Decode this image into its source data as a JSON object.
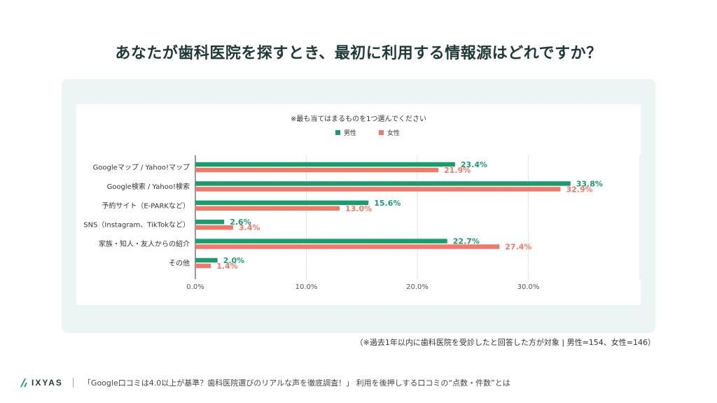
{
  "title": "あなたが歯科医院を探すとき、最初に利用する情報源はどれですか？",
  "note": "（※過去1年以内に歯科医院を受診したと回答した方が対象 | 男性=154、女性=146）",
  "footer": {
    "logo_text": "IXYAS",
    "text": "「Google口コミは4.0以上が基準？歯科医院選びのリアルな声を徹底調査！」 利用を後押しする口コミの“点数・件数”とは"
  },
  "colors": {
    "male": "#1a9d6c",
    "female": "#f07a6a",
    "title": "#1f3a36",
    "panel": "#ebf6f4"
  },
  "chart_data": {
    "type": "bar",
    "orientation": "horizontal",
    "subtitle": "※最も当てはまるものを1つ選んでください",
    "categories": [
      "Googleマップ / Yahoo!マップ",
      "Google検索 / Yahoo!検索",
      "予約サイト（E-PARKなど）",
      "SNS（Instagram、TikTokなど）",
      "家族・知人・友人からの紹介",
      "その他"
    ],
    "series": [
      {
        "name": "男性",
        "values": [
          23.4,
          33.8,
          15.6,
          2.6,
          22.7,
          2.0
        ],
        "labels": [
          "23.4%",
          "33.8%",
          "15.6%",
          "2.6%",
          "22.7%",
          "2.0%"
        ]
      },
      {
        "name": "女性",
        "values": [
          21.9,
          32.9,
          13.0,
          3.4,
          27.4,
          1.4
        ],
        "labels": [
          "21.9%",
          "32.9%",
          "13.0%",
          "3.4%",
          "27.4%",
          "1.4%"
        ]
      }
    ],
    "x_ticks": [
      0,
      10,
      20,
      30
    ],
    "x_tick_labels": [
      "0.0%",
      "10.0%",
      "20.0%",
      "30.0%"
    ],
    "xlim": [
      0,
      40
    ],
    "legend_position": "top-center",
    "grid": true
  }
}
